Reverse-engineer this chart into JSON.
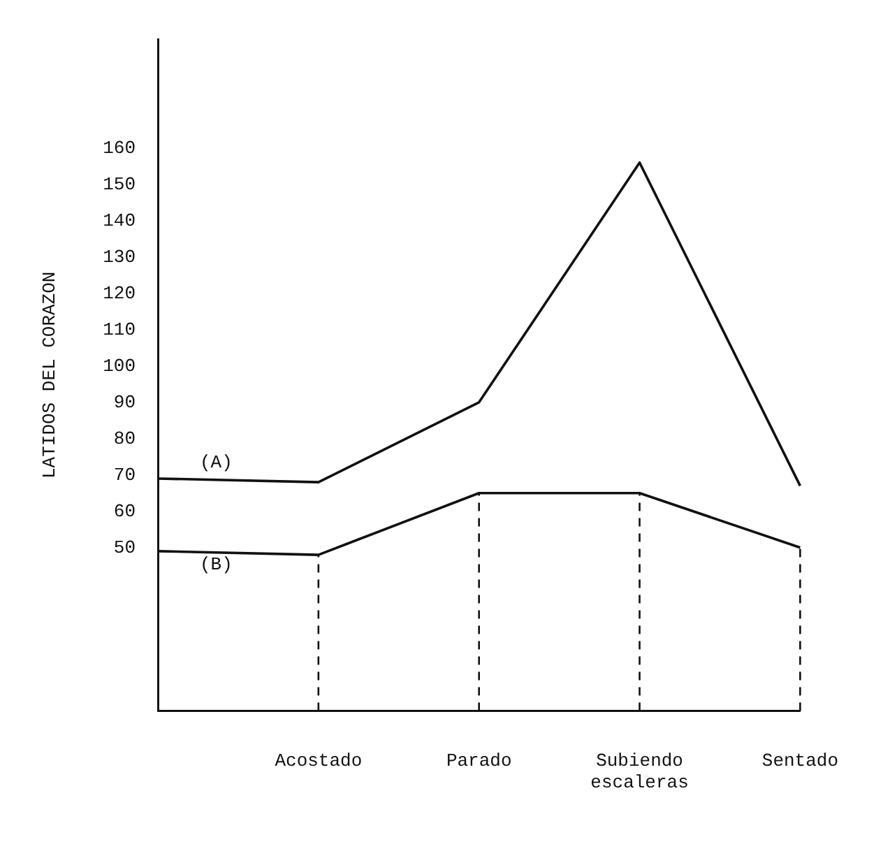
{
  "chart_data": {
    "type": "line",
    "ylabel": "LATIDOS DEL CORAZON",
    "categories": [
      null,
      "Acostado",
      "Parado",
      "Subiendo escaleras",
      "Sentado"
    ],
    "series": [
      {
        "name": "(A)",
        "color": "#111111",
        "values": [
          69,
          68,
          90,
          156,
          67
        ]
      },
      {
        "name": "(B)",
        "color": "#111111",
        "values": [
          49,
          48,
          65,
          65,
          50
        ]
      }
    ],
    "ylim": [
      5,
      190
    ],
    "yticks": [
      50,
      60,
      70,
      80,
      90,
      100,
      110,
      120,
      130,
      140,
      150,
      160
    ],
    "ref_lines": [
      {
        "axis": "x",
        "value": "Acostado",
        "line_style": "dashed"
      },
      {
        "axis": "x",
        "value": "Parado",
        "line_style": "dashed"
      },
      {
        "axis": "x",
        "value": "Subiendo escaleras",
        "line_style": "dashed"
      },
      {
        "axis": "x",
        "value": "Sentado",
        "line_style": "dashed"
      }
    ],
    "grid": false,
    "legend": false,
    "marker": "none",
    "line_style": "solid"
  }
}
